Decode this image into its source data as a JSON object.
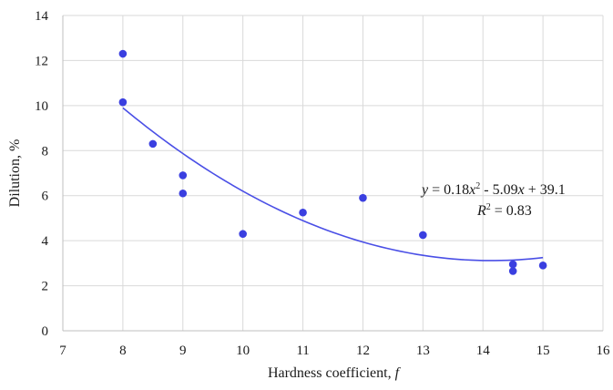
{
  "chart_data": {
    "type": "scatter",
    "xlabel_text": "Hardness coefficient, ",
    "xlabel_var": "f",
    "ylabel": "Dilution, %",
    "xlim": [
      7,
      16
    ],
    "ylim": [
      0,
      14
    ],
    "xticks": [
      "7",
      "8",
      "9",
      "10",
      "11",
      "12",
      "13",
      "14",
      "15",
      "16"
    ],
    "yticks": [
      "0",
      "2",
      "4",
      "6",
      "8",
      "10",
      "12",
      "14"
    ],
    "grid": true,
    "legend": "none",
    "points": [
      {
        "x": 8.0,
        "y": 12.3
      },
      {
        "x": 8.0,
        "y": 10.15
      },
      {
        "x": 8.5,
        "y": 8.3
      },
      {
        "x": 9.0,
        "y": 6.9
      },
      {
        "x": 9.0,
        "y": 6.1
      },
      {
        "x": 10.0,
        "y": 4.3
      },
      {
        "x": 11.0,
        "y": 5.25
      },
      {
        "x": 12.0,
        "y": 5.9
      },
      {
        "x": 13.0,
        "y": 4.25
      },
      {
        "x": 14.5,
        "y": 2.95
      },
      {
        "x": 14.5,
        "y": 2.65
      },
      {
        "x": 15.0,
        "y": 2.9
      }
    ],
    "trendline": {
      "type": "polynomial",
      "coefficients": [
        0.18,
        -5.09,
        39.1
      ],
      "x_range": [
        8,
        15
      ],
      "equation": {
        "y_var": "y",
        "eq_a": " = 0.18",
        "x_var_1": "x",
        "sup_2": "2",
        "eq_b": " - 5.09",
        "x_var_2": "x",
        "eq_c": " + 39.1"
      },
      "r2": {
        "r_var": "R",
        "sup_2": "2",
        "value": " = 0.83"
      }
    },
    "colors": {
      "points": "#3a3fe0",
      "trendline": "#4a4fe6",
      "grid": "#d9d9d9",
      "axis": "#bfbfbf"
    }
  }
}
